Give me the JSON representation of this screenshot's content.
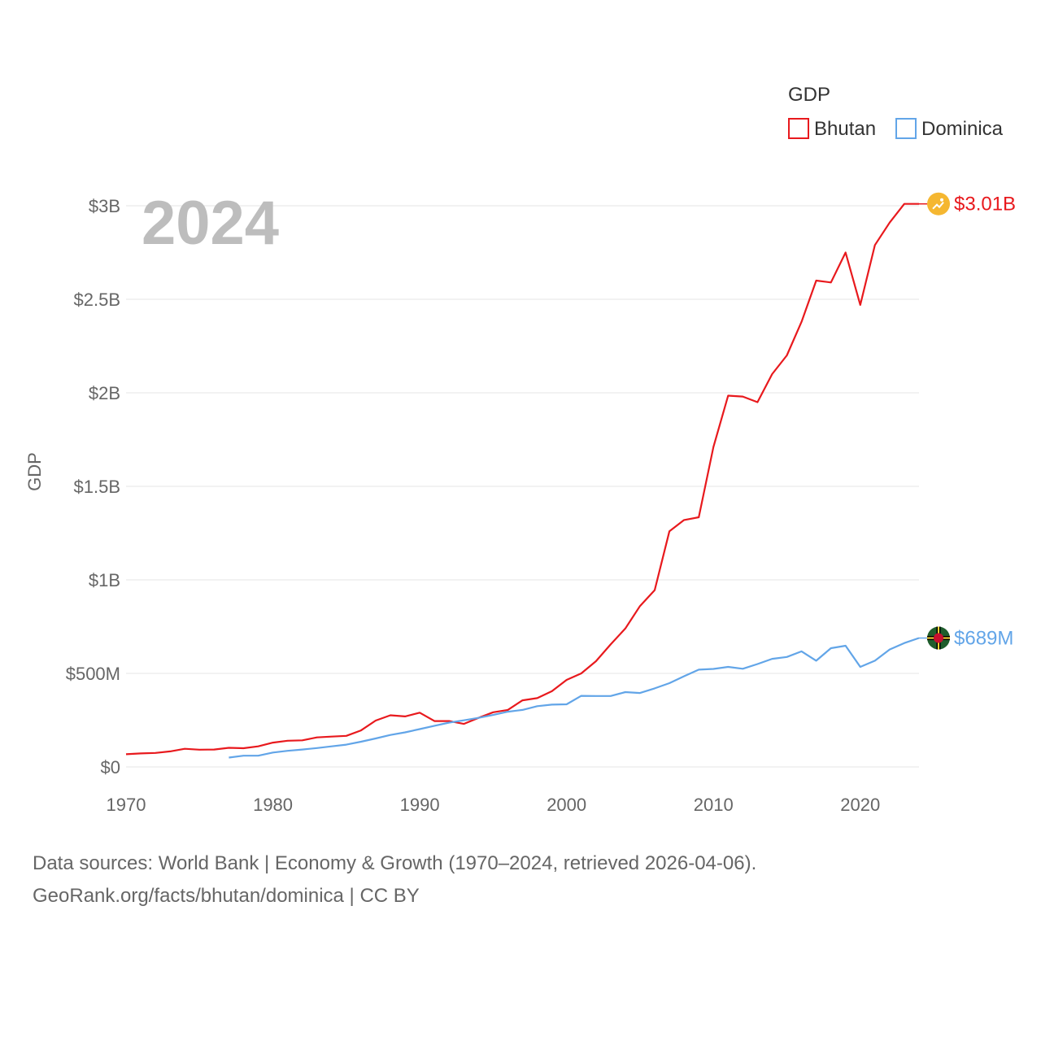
{
  "chart_data": {
    "type": "line",
    "title": "",
    "year_label": "2024",
    "ylabel": "GDP",
    "xlabel": "",
    "legend": {
      "title": "GDP",
      "position": "top-right"
    },
    "xlim": [
      1970,
      2024
    ],
    "ylim": [
      0,
      3000000000
    ],
    "x_ticks": [
      1970,
      1980,
      1990,
      2000,
      2010,
      2020
    ],
    "x_tick_labels": [
      "1970",
      "1980",
      "1990",
      "2000",
      "2010",
      "2020"
    ],
    "y_ticks": [
      0,
      500000000,
      1000000000,
      1500000000,
      2000000000,
      2500000000,
      3000000000
    ],
    "y_tick_labels": [
      "$0",
      "$500M",
      "$1B",
      "$1.5B",
      "$2B",
      "$2.5B",
      "$3B"
    ],
    "series": [
      {
        "name": "Bhutan",
        "color": "#e8191d",
        "end_label": "$3.01B",
        "icon": "bhutan-flag-icon",
        "points": [
          [
            1970,
            68000000
          ],
          [
            1971,
            72000000
          ],
          [
            1972,
            75000000
          ],
          [
            1973,
            83000000
          ],
          [
            1974,
            97000000
          ],
          [
            1975,
            92000000
          ],
          [
            1976,
            93000000
          ],
          [
            1977,
            102000000
          ],
          [
            1978,
            100000000
          ],
          [
            1979,
            110000000
          ],
          [
            1980,
            130000000
          ],
          [
            1981,
            140000000
          ],
          [
            1982,
            142000000
          ],
          [
            1983,
            158000000
          ],
          [
            1984,
            162000000
          ],
          [
            1985,
            166000000
          ],
          [
            1986,
            195000000
          ],
          [
            1987,
            248000000
          ],
          [
            1988,
            276000000
          ],
          [
            1989,
            270000000
          ],
          [
            1990,
            290000000
          ],
          [
            1991,
            245000000
          ],
          [
            1992,
            245000000
          ],
          [
            1993,
            230000000
          ],
          [
            1994,
            262000000
          ],
          [
            1995,
            292000000
          ],
          [
            1996,
            305000000
          ],
          [
            1997,
            356000000
          ],
          [
            1998,
            368000000
          ],
          [
            1999,
            405000000
          ],
          [
            2000,
            465000000
          ],
          [
            2001,
            500000000
          ],
          [
            2002,
            565000000
          ],
          [
            2003,
            655000000
          ],
          [
            2004,
            740000000
          ],
          [
            2005,
            860000000
          ],
          [
            2006,
            945000000
          ],
          [
            2007,
            1260000000
          ],
          [
            2008,
            1320000000
          ],
          [
            2009,
            1335000000
          ],
          [
            2010,
            1710000000
          ],
          [
            2011,
            1985000000
          ],
          [
            2012,
            1980000000
          ],
          [
            2013,
            1950000000
          ],
          [
            2014,
            2100000000
          ],
          [
            2015,
            2200000000
          ],
          [
            2016,
            2380000000
          ],
          [
            2017,
            2600000000
          ],
          [
            2018,
            2590000000
          ],
          [
            2019,
            2750000000
          ],
          [
            2020,
            2470000000
          ],
          [
            2021,
            2790000000
          ],
          [
            2022,
            2910000000
          ],
          [
            2023,
            3010000000
          ],
          [
            2024,
            3010000000
          ]
        ]
      },
      {
        "name": "Dominica",
        "color": "#62a5e8",
        "end_label": "$689M",
        "icon": "dominica-flag-icon",
        "points": [
          [
            1977,
            50000000
          ],
          [
            1978,
            60000000
          ],
          [
            1979,
            60000000
          ],
          [
            1980,
            77000000
          ],
          [
            1981,
            86000000
          ],
          [
            1982,
            93000000
          ],
          [
            1983,
            101000000
          ],
          [
            1984,
            110000000
          ],
          [
            1985,
            119000000
          ],
          [
            1986,
            135000000
          ],
          [
            1987,
            152000000
          ],
          [
            1988,
            171000000
          ],
          [
            1989,
            185000000
          ],
          [
            1990,
            202000000
          ],
          [
            1991,
            220000000
          ],
          [
            1992,
            237000000
          ],
          [
            1993,
            249000000
          ],
          [
            1994,
            262000000
          ],
          [
            1995,
            278000000
          ],
          [
            1996,
            295000000
          ],
          [
            1997,
            305000000
          ],
          [
            1998,
            325000000
          ],
          [
            1999,
            333000000
          ],
          [
            2000,
            335000000
          ],
          [
            2001,
            380000000
          ],
          [
            2002,
            379000000
          ],
          [
            2003,
            379000000
          ],
          [
            2004,
            400000000
          ],
          [
            2005,
            395000000
          ],
          [
            2006,
            420000000
          ],
          [
            2007,
            448000000
          ],
          [
            2008,
            485000000
          ],
          [
            2009,
            520000000
          ],
          [
            2010,
            524000000
          ],
          [
            2011,
            535000000
          ],
          [
            2012,
            525000000
          ],
          [
            2013,
            550000000
          ],
          [
            2014,
            578000000
          ],
          [
            2015,
            588000000
          ],
          [
            2016,
            618000000
          ],
          [
            2017,
            568000000
          ],
          [
            2018,
            635000000
          ],
          [
            2019,
            648000000
          ],
          [
            2020,
            535000000
          ],
          [
            2021,
            568000000
          ],
          [
            2022,
            628000000
          ],
          [
            2023,
            662000000
          ],
          [
            2024,
            689000000
          ]
        ]
      }
    ]
  },
  "footer": {
    "line1": "Data sources: World Bank | Economy & Growth (1970–2024, retrieved 2026-04-06).",
    "line2": "GeoRank.org/facts/bhutan/dominica | CC BY"
  }
}
